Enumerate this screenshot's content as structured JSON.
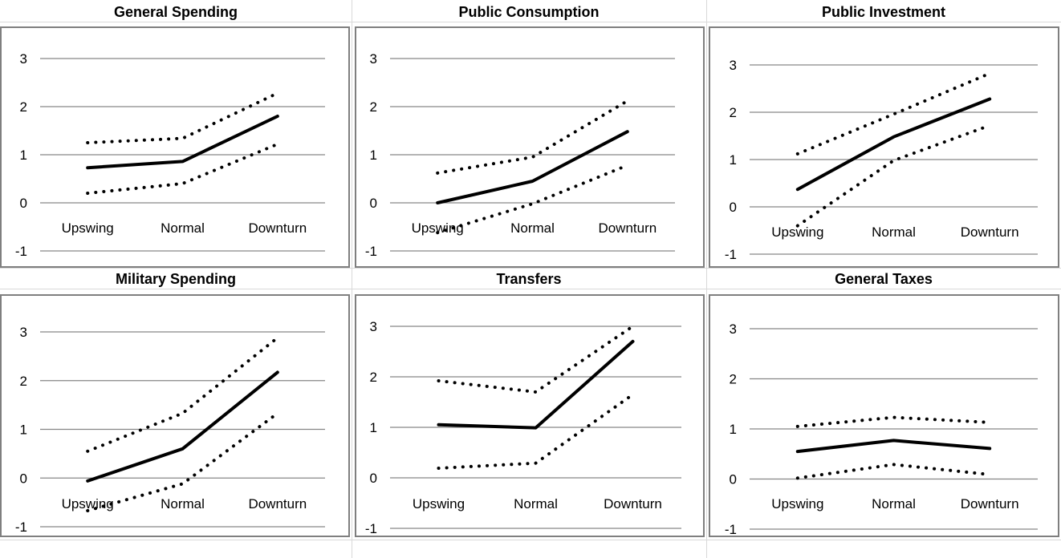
{
  "chart_data": [
    {
      "type": "line",
      "title": "General Spending",
      "categories": [
        "Upswing",
        "Normal",
        "Downturn"
      ],
      "ylim": [
        -1,
        3
      ],
      "yticks": [
        3,
        2,
        1,
        0,
        -1
      ],
      "grid": true,
      "series": [
        {
          "style": "solid",
          "values": [
            0.73,
            0.86,
            1.8
          ]
        },
        {
          "style": "dotted",
          "values": [
            1.25,
            1.34,
            2.28
          ]
        },
        {
          "style": "dotted",
          "values": [
            0.2,
            0.4,
            1.22
          ]
        }
      ]
    },
    {
      "type": "line",
      "title": "Public Consumption",
      "categories": [
        "Upswing",
        "Normal",
        "Downturn"
      ],
      "ylim": [
        -1,
        3
      ],
      "yticks": [
        3,
        2,
        1,
        0,
        -1
      ],
      "grid": true,
      "series": [
        {
          "style": "solid",
          "values": [
            0.0,
            0.45,
            1.48
          ]
        },
        {
          "style": "dotted",
          "values": [
            0.62,
            0.95,
            2.12
          ]
        },
        {
          "style": "dotted",
          "values": [
            -0.62,
            -0.02,
            0.78
          ]
        }
      ]
    },
    {
      "type": "line",
      "title": "Public Investment",
      "categories": [
        "Upswing",
        "Normal",
        "Downturn"
      ],
      "ylim": [
        -1,
        3
      ],
      "yticks": [
        3,
        2,
        1,
        0,
        -1
      ],
      "grid": true,
      "series": [
        {
          "style": "solid",
          "values": [
            0.37,
            1.48,
            2.28
          ]
        },
        {
          "style": "dotted",
          "values": [
            1.12,
            1.96,
            2.82
          ]
        },
        {
          "style": "dotted",
          "values": [
            -0.4,
            0.98,
            1.72
          ]
        }
      ]
    },
    {
      "type": "line",
      "title": "Military Spending",
      "categories": [
        "Upswing",
        "Normal",
        "Downturn"
      ],
      "ylim": [
        -1,
        3
      ],
      "yticks": [
        3,
        2,
        1,
        0,
        -1
      ],
      "grid": true,
      "series": [
        {
          "style": "solid",
          "values": [
            -0.06,
            0.6,
            2.17
          ]
        },
        {
          "style": "dotted",
          "values": [
            0.55,
            1.33,
            2.88
          ]
        },
        {
          "style": "dotted",
          "values": [
            -0.67,
            -0.12,
            1.33
          ]
        }
      ]
    },
    {
      "type": "line",
      "title": "Transfers",
      "categories": [
        "Upswing",
        "Normal",
        "Downturn"
      ],
      "ylim": [
        -1,
        3
      ],
      "yticks": [
        3,
        2,
        1,
        0,
        -1
      ],
      "grid": true,
      "series": [
        {
          "style": "solid",
          "values": [
            1.05,
            0.99,
            2.7
          ]
        },
        {
          "style": "dotted",
          "values": [
            1.92,
            1.7,
            3.0
          ]
        },
        {
          "style": "dotted",
          "values": [
            0.19,
            0.29,
            1.65
          ]
        }
      ]
    },
    {
      "type": "line",
      "title": "General Taxes",
      "categories": [
        "Upswing",
        "Normal",
        "Downturn"
      ],
      "ylim": [
        -1,
        3
      ],
      "yticks": [
        3,
        2,
        1,
        0,
        -1
      ],
      "grid": true,
      "series": [
        {
          "style": "solid",
          "values": [
            0.55,
            0.77,
            0.61
          ]
        },
        {
          "style": "dotted",
          "values": [
            1.05,
            1.23,
            1.13
          ]
        },
        {
          "style": "dotted",
          "values": [
            0.02,
            0.29,
            0.09
          ]
        }
      ]
    }
  ]
}
